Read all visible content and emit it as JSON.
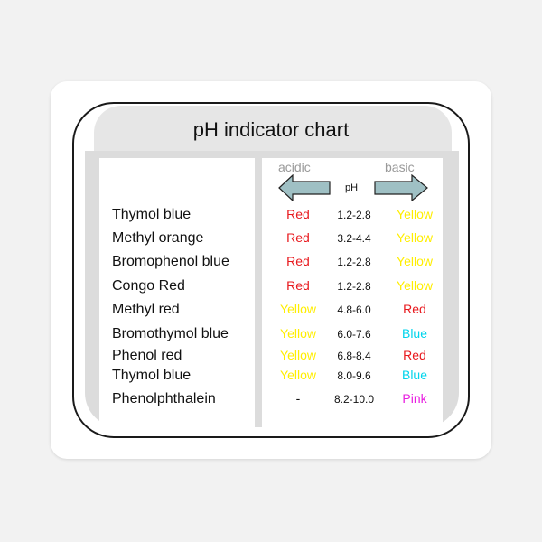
{
  "title": "pH indicator chart",
  "header": {
    "acidic_label": "acidic",
    "basic_label": "basic",
    "ph_label": "pH"
  },
  "colors": {
    "Red": "#e8191e",
    "Yellow": "#ffee00",
    "Blue": "#00d4ec",
    "Pink": "#e81ee0",
    "-": "#111111",
    "arrow_fill": "#9fc0c4"
  },
  "rows": [
    {
      "name": "Thymol blue",
      "acidic": "Red",
      "range": "1.2-2.8",
      "basic": "Yellow"
    },
    {
      "name": "Methyl orange",
      "acidic": "Red",
      "range": "3.2-4.4",
      "basic": "Yellow"
    },
    {
      "name": "Bromophenol blue",
      "acidic": "Red",
      "range": "1.2-2.8",
      "basic": "Yellow"
    },
    {
      "name": "Congo Red",
      "acidic": "Red",
      "range": "1.2-2.8",
      "basic": "Yellow"
    },
    {
      "name": "Methyl red",
      "acidic": "Yellow",
      "range": "4.8-6.0",
      "basic": "Red"
    },
    {
      "name": "Bromothymol blue",
      "acidic": "Yellow",
      "range": "6.0-7.6",
      "basic": "Blue"
    },
    {
      "name": "Phenol red",
      "acidic": "Yellow",
      "range": "6.8-8.4",
      "basic": "Red"
    },
    {
      "name": "Thymol blue",
      "acidic": "Yellow",
      "range": "8.0-9.6",
      "basic": "Blue"
    },
    {
      "name": "Phenolphthalein",
      "acidic": "-",
      "range": "8.2-10.0",
      "basic": "Pink"
    }
  ]
}
